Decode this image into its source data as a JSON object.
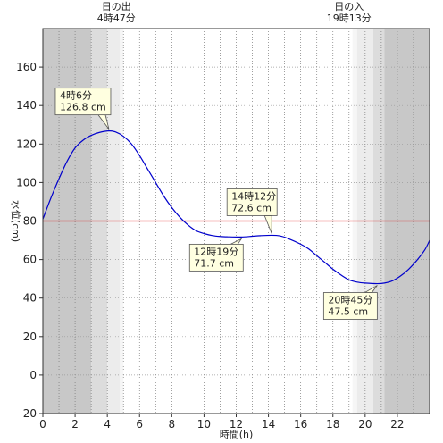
{
  "chart_data": {
    "type": "line",
    "xlabel": "時間(h)",
    "ylabel": "水位(cm)",
    "xlim": [
      0,
      24
    ],
    "ylim": [
      -20,
      180
    ],
    "x_ticks": [
      0,
      2,
      4,
      6,
      8,
      10,
      12,
      14,
      16,
      18,
      20,
      22
    ],
    "y_ticks": [
      -20,
      0,
      20,
      40,
      60,
      80,
      100,
      120,
      140,
      160
    ],
    "grid": true,
    "reference_line": {
      "value": 80,
      "color": "#e00000"
    },
    "series": [
      {
        "color": "#0000cc",
        "points": [
          [
            0,
            81
          ],
          [
            0.5,
            92
          ],
          [
            1,
            102
          ],
          [
            1.5,
            111
          ],
          [
            2,
            118
          ],
          [
            2.5,
            122
          ],
          [
            3,
            124.5
          ],
          [
            3.5,
            126
          ],
          [
            4.1,
            126.8
          ],
          [
            4.5,
            126.3
          ],
          [
            5,
            124
          ],
          [
            5.5,
            120
          ],
          [
            6,
            114
          ],
          [
            6.5,
            107
          ],
          [
            7,
            100
          ],
          [
            7.5,
            93
          ],
          [
            8,
            87
          ],
          [
            8.5,
            82
          ],
          [
            9,
            78
          ],
          [
            9.5,
            75
          ],
          [
            10,
            73.5
          ],
          [
            10.5,
            72.5
          ],
          [
            11,
            72
          ],
          [
            11.5,
            71.8
          ],
          [
            12.32,
            71.7
          ],
          [
            13,
            72.1
          ],
          [
            13.5,
            72.4
          ],
          [
            14.2,
            72.6
          ],
          [
            14.7,
            72.3
          ],
          [
            15.2,
            71
          ],
          [
            16,
            68
          ],
          [
            16.5,
            65.5
          ],
          [
            17,
            62
          ],
          [
            17.5,
            58.5
          ],
          [
            18,
            55
          ],
          [
            18.5,
            52
          ],
          [
            19,
            49.5
          ],
          [
            19.5,
            48.3
          ],
          [
            20,
            47.8
          ],
          [
            20.75,
            47.5
          ],
          [
            21.2,
            47.8
          ],
          [
            21.7,
            49
          ],
          [
            22.2,
            51.5
          ],
          [
            22.7,
            55
          ],
          [
            23.2,
            59.5
          ],
          [
            23.7,
            65
          ],
          [
            24,
            70
          ]
        ]
      }
    ],
    "annotations": [
      {
        "x": 4.1,
        "y": 126.8,
        "time": "4時6分",
        "value": "126.8 cm"
      },
      {
        "x": 14.2,
        "y": 72.6,
        "time": "14時12分",
        "value": "72.6 cm"
      },
      {
        "x": 12.32,
        "y": 71.7,
        "time": "12時19分",
        "value": "71.7 cm"
      },
      {
        "x": 20.75,
        "y": 47.5,
        "time": "20時45分",
        "value": "47.5 cm"
      }
    ],
    "sunrise": {
      "label": "日の出",
      "time": "4時47分",
      "x": 4.783
    },
    "sunset": {
      "label": "日の入",
      "time": "19時13分",
      "x": 19.217
    },
    "shading": [
      {
        "from": 0,
        "to": 3.0,
        "color": "#c8c8c8"
      },
      {
        "from": 3.0,
        "to": 4.0,
        "color": "#dcdcdc"
      },
      {
        "from": 4.0,
        "to": 4.783,
        "color": "#ececec"
      },
      {
        "from": 4.783,
        "to": 5.0,
        "color": "#f6f6f6"
      },
      {
        "from": 19.217,
        "to": 19.5,
        "color": "#f6f6f6"
      },
      {
        "from": 19.5,
        "to": 20.5,
        "color": "#ececec"
      },
      {
        "from": 20.5,
        "to": 21.2,
        "color": "#dcdcdc"
      },
      {
        "from": 21.2,
        "to": 24,
        "color": "#c8c8c8"
      }
    ]
  }
}
